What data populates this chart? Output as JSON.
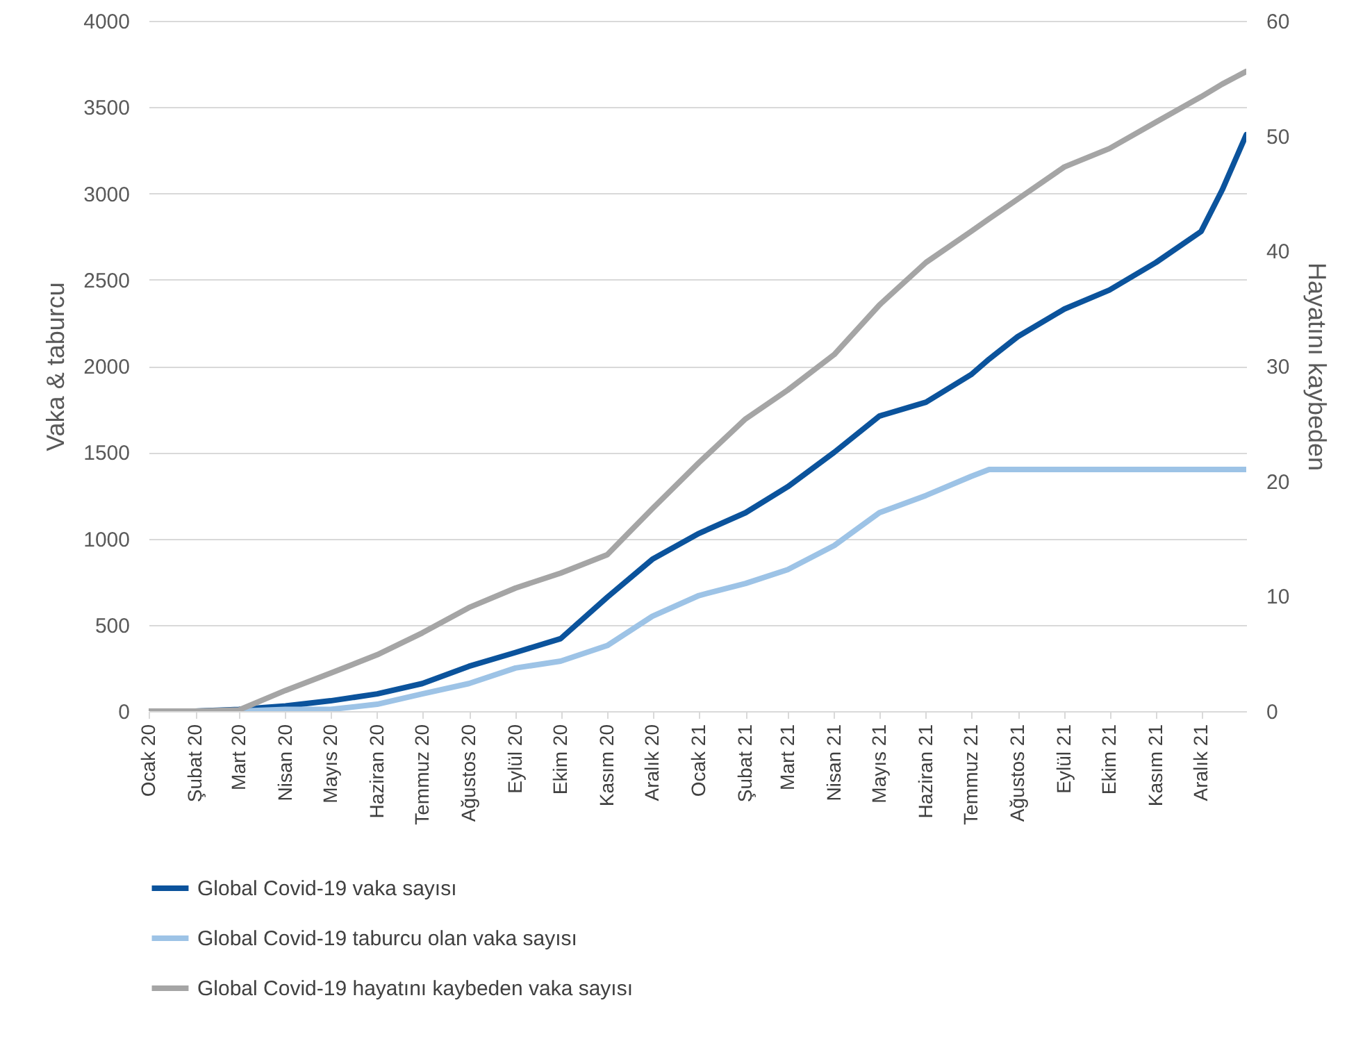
{
  "chart_data": {
    "type": "line",
    "ylabel": "Vaka & taburcu",
    "y2label": "Hayatını kaybeden",
    "xlim": [
      "2020-01-01",
      "2021-12-31"
    ],
    "xticks": [
      {
        "value": "2020-01-01",
        "label": "Ocak 20"
      },
      {
        "value": "2020-02-01",
        "label": "Şubat 20"
      },
      {
        "value": "2020-03-01",
        "label": "Mart 20"
      },
      {
        "value": "2020-04-01",
        "label": "Nisan 20"
      },
      {
        "value": "2020-05-01",
        "label": "Mayıs 20"
      },
      {
        "value": "2020-06-01",
        "label": "Haziran 20"
      },
      {
        "value": "2020-07-01",
        "label": "Temmuz 20"
      },
      {
        "value": "2020-08-01",
        "label": "Ağustos 20"
      },
      {
        "value": "2020-09-01",
        "label": "Eylül 20"
      },
      {
        "value": "2020-10-01",
        "label": "Ekim 20"
      },
      {
        "value": "2020-11-01",
        "label": "Kasım 20"
      },
      {
        "value": "2020-12-01",
        "label": "Aralık 20"
      },
      {
        "value": "2021-01-01",
        "label": "Ocak 21"
      },
      {
        "value": "2021-02-01",
        "label": "Şubat 21"
      },
      {
        "value": "2021-03-01",
        "label": "Mart 21"
      },
      {
        "value": "2021-04-01",
        "label": "Nisan 21"
      },
      {
        "value": "2021-05-01",
        "label": "Mayıs 21"
      },
      {
        "value": "2021-06-01",
        "label": "Haziran 21"
      },
      {
        "value": "2021-07-01",
        "label": "Temmuz 21"
      },
      {
        "value": "2021-08-01",
        "label": "Ağustos 21"
      },
      {
        "value": "2021-09-01",
        "label": "Eylül 21"
      },
      {
        "value": "2021-10-01",
        "label": "Ekim 21"
      },
      {
        "value": "2021-11-01",
        "label": "Kasım 21"
      },
      {
        "value": "2021-12-01",
        "label": "Aralık 21"
      }
    ],
    "ylim": [
      0,
      4000
    ],
    "yticks": [
      0,
      500,
      1000,
      1500,
      2000,
      2500,
      3000,
      3500,
      4000
    ],
    "y2lim": [
      0,
      60
    ],
    "y2ticks": [
      0,
      10,
      20,
      30,
      40,
      50,
      60
    ],
    "x": [
      "2020-01-01",
      "2020-02-01",
      "2020-03-01",
      "2020-04-01",
      "2020-05-01",
      "2020-06-01",
      "2020-07-01",
      "2020-08-01",
      "2020-09-01",
      "2020-10-01",
      "2020-11-01",
      "2020-12-01",
      "2021-01-01",
      "2021-02-01",
      "2021-03-01",
      "2021-04-01",
      "2021-05-01",
      "2021-06-01",
      "2021-07-01",
      "2021-07-13",
      "2021-08-01",
      "2021-09-01",
      "2021-10-01",
      "2021-11-01",
      "2021-12-01",
      "2021-12-15",
      "2021-12-31"
    ],
    "series": [
      {
        "name": "Global Covid-19 vaka sayısı",
        "color": "#0b539c",
        "values": [
          0,
          0,
          10,
          30,
          60,
          100,
          160,
          260,
          340,
          420,
          660,
          880,
          1030,
          1150,
          1300,
          1500,
          1710,
          1790,
          1950,
          2040,
          2170,
          2330,
          2440,
          2600,
          2780,
          3020,
          3340
        ]
      },
      {
        "name": "Global Covid-19 taburcu olan vaka sayısı",
        "color": "#9dc3e6",
        "values": [
          0,
          0,
          0,
          10,
          10,
          40,
          100,
          160,
          250,
          290,
          380,
          550,
          670,
          740,
          820,
          960,
          1150,
          1250,
          1360,
          1400,
          1400,
          1400,
          1400,
          1400,
          1400,
          1400,
          1400
        ]
      },
      {
        "name": "Global Covid-19 hayatını kaybeden vaka sayısı",
        "color": "#a5a5a5",
        "axis": "y2",
        "values": [
          0,
          0,
          0.1,
          1.8,
          3.3,
          4.9,
          6.8,
          9,
          10.7,
          12,
          13.6,
          17.6,
          21.6,
          25.4,
          27.9,
          31,
          35.3,
          39,
          41.7,
          42.8,
          44.5,
          47.3,
          48.9,
          51.2,
          53.4,
          54.5,
          55.6
        ]
      }
    ],
    "grid": "y",
    "legend": "bottom",
    "line_style": "solid",
    "marker": "none"
  }
}
